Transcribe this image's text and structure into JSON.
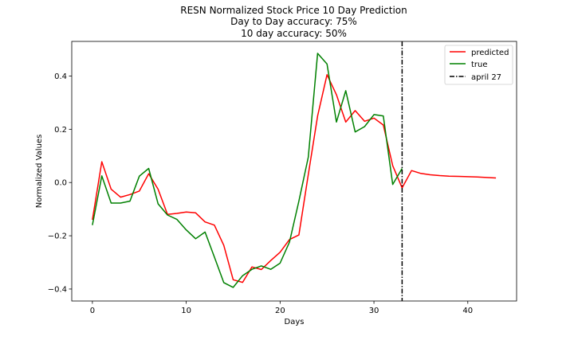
{
  "chart_data": {
    "type": "line",
    "title_lines": [
      "RESN Normalized Stock Price 10 Day Prediction",
      "Day to Day accuracy: 75%",
      "10 day accuracy: 50%"
    ],
    "xlabel": "Days",
    "ylabel": "Normalized Values",
    "xlim": [
      -2.2,
      45.2
    ],
    "ylim": [
      -0.445,
      0.53
    ],
    "xticks": [
      0,
      10,
      20,
      30,
      40
    ],
    "yticks": [
      -0.4,
      -0.2,
      0.0,
      0.2,
      0.4
    ],
    "ytick_labels": [
      "−0.4",
      "−0.2",
      "0.0",
      "0.2",
      "0.4"
    ],
    "legend_position": "top-right",
    "series": [
      {
        "name": "predicted",
        "color": "#ff0000",
        "x": [
          0,
          1,
          2,
          3,
          4,
          5,
          6,
          7,
          8,
          9,
          10,
          11,
          12,
          13,
          14,
          15,
          16,
          17,
          18,
          19,
          20,
          21,
          22,
          23,
          24,
          25,
          26,
          27,
          28,
          29,
          30,
          31,
          32,
          33,
          34,
          35,
          36,
          37,
          38,
          39,
          40,
          41,
          42,
          43
        ],
        "values": [
          -0.14,
          0.078,
          -0.025,
          -0.055,
          -0.045,
          -0.032,
          0.033,
          -0.025,
          -0.12,
          -0.116,
          -0.111,
          -0.114,
          -0.148,
          -0.16,
          -0.236,
          -0.365,
          -0.375,
          -0.317,
          -0.327,
          -0.293,
          -0.262,
          -0.214,
          -0.197,
          0.03,
          0.25,
          0.405,
          0.33,
          0.227,
          0.27,
          0.23,
          0.242,
          0.216,
          0.063,
          -0.02,
          0.045,
          0.034,
          0.029,
          0.026,
          0.024,
          0.023,
          0.022,
          0.021,
          0.019,
          0.017
        ]
      },
      {
        "name": "true",
        "color": "#008000",
        "x": [
          0,
          1,
          2,
          3,
          4,
          5,
          6,
          7,
          8,
          9,
          10,
          11,
          12,
          13,
          14,
          15,
          16,
          17,
          18,
          19,
          20,
          21,
          22,
          23,
          24,
          25,
          26,
          27,
          28,
          29,
          30,
          31,
          32,
          33
        ],
        "values": [
          -0.16,
          0.025,
          -0.077,
          -0.077,
          -0.07,
          0.024,
          0.053,
          -0.08,
          -0.122,
          -0.138,
          -0.178,
          -0.211,
          -0.186,
          -0.28,
          -0.376,
          -0.394,
          -0.35,
          -0.326,
          -0.313,
          -0.326,
          -0.303,
          -0.224,
          -0.07,
          0.095,
          0.485,
          0.445,
          0.227,
          0.345,
          0.19,
          0.21,
          0.255,
          0.25,
          -0.007,
          0.053
        ]
      }
    ],
    "vline": {
      "name": "april 27",
      "x": 33,
      "color": "#000000",
      "style": "dash-dot"
    }
  }
}
